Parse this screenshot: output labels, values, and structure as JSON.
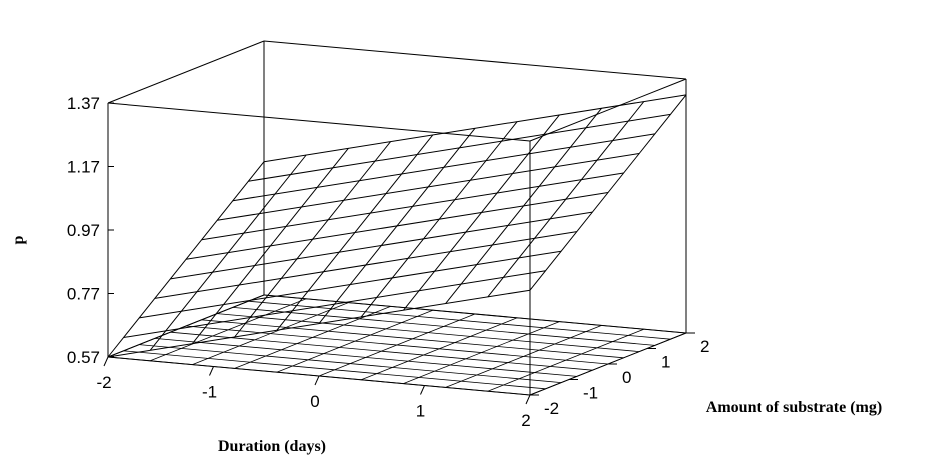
{
  "chart_data": {
    "type": "surface",
    "zlabel": "p",
    "xlabel": "Duration (days)",
    "ylabel": "Amount of substrate (mg)",
    "z_ticks": [
      "1.37",
      "1.17",
      "0.97",
      "0.77",
      "0.57"
    ],
    "x_ticks": [
      "-2",
      "-1",
      "0",
      "1",
      "2"
    ],
    "y_ticks": [
      "-2",
      "-1",
      "0",
      "1",
      "2"
    ],
    "xlim": [
      -2,
      2
    ],
    "ylim": [
      -2,
      2
    ],
    "zlim": [
      0.57,
      1.37
    ],
    "grid_lines": 11,
    "surface_corners": {
      "x_-2_y_-2": 0.57,
      "x_2_y_-2": 0.9,
      "x_-2_y_2": 0.99,
      "x_2_y_2": 1.32
    },
    "colors": {
      "line": "#000000",
      "background": "#ffffff"
    }
  }
}
